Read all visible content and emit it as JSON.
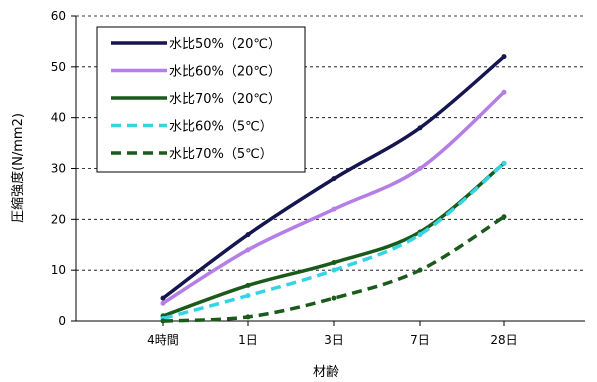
{
  "chart_data": {
    "type": "line",
    "title": "",
    "xlabel": "材齢",
    "ylabel": "圧縮強度(N/mm2)",
    "categories": [
      "4時間",
      "1日",
      "3日",
      "7日",
      "28日"
    ],
    "ylim": [
      0,
      60
    ],
    "yticks": [
      0,
      10,
      20,
      30,
      40,
      50,
      60
    ],
    "grid": "horizontal-dashed",
    "legend_position": "top-left",
    "series": [
      {
        "name": "水比50%（20℃）",
        "color": "#15154f",
        "dash": "solid",
        "values": [
          4.5,
          17,
          28,
          38,
          52
        ]
      },
      {
        "name": "水比60%（20℃）",
        "color": "#b57ee6",
        "dash": "solid",
        "values": [
          3.5,
          14,
          22,
          30,
          45
        ]
      },
      {
        "name": "水比70%（20℃）",
        "color": "#1a5a1a",
        "dash": "solid",
        "values": [
          1,
          7,
          11.5,
          17.5,
          31
        ]
      },
      {
        "name": "水比60%（5℃）",
        "color": "#35d4e4",
        "dash": "dashed",
        "values": [
          0.5,
          5,
          10,
          17,
          31
        ]
      },
      {
        "name": "水比70%（5℃）",
        "color": "#1a5a1a",
        "dash": "dashed",
        "values": [
          0,
          0.8,
          4.5,
          10,
          20.5
        ]
      }
    ]
  }
}
